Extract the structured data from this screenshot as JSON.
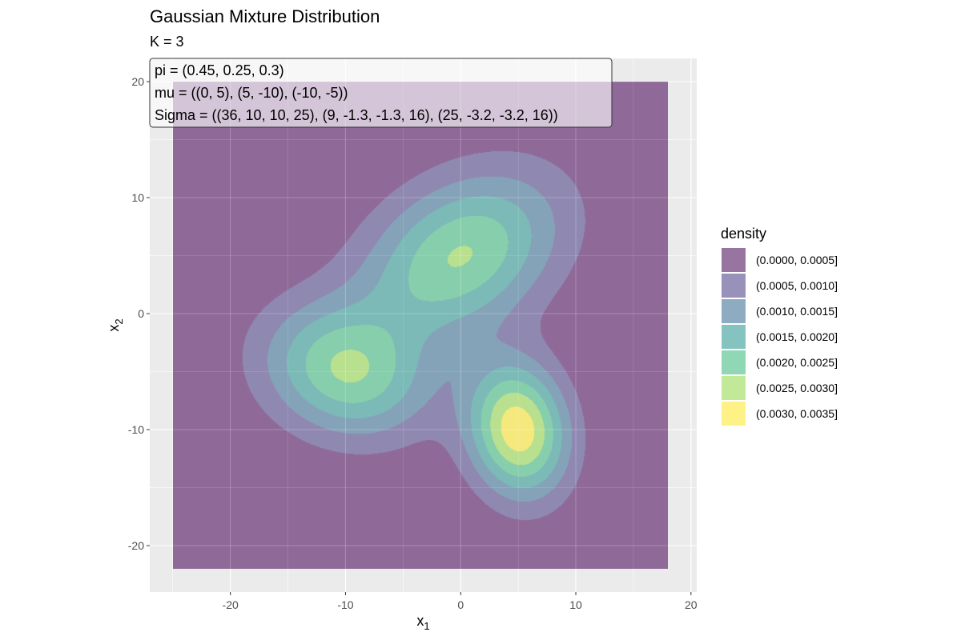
{
  "chart_data": {
    "type": "heatmap",
    "title": "Gaussian Mixture Distribution",
    "subtitle": "K = 3",
    "xlabel": "x",
    "xlabel_subscript": "1",
    "ylabel": "x",
    "ylabel_subscript": "2",
    "xlim": [
      -27,
      20.5
    ],
    "ylim": [
      -24,
      22
    ],
    "data_extent": {
      "x": [
        -25,
        18
      ],
      "y": [
        -22,
        20
      ]
    },
    "x_ticks": [
      -20,
      -10,
      0,
      10,
      20
    ],
    "x_tick_labels": [
      "-20",
      "-10",
      "0",
      "10",
      "20"
    ],
    "y_ticks": [
      -20,
      -10,
      0,
      10,
      20
    ],
    "y_tick_labels": [
      "-20",
      "-10",
      "0",
      "10",
      "20"
    ],
    "grid": true,
    "legend_position": "right",
    "mixture": {
      "K": 3,
      "pi": [
        0.45,
        0.25,
        0.3
      ],
      "mu": [
        [
          0,
          5
        ],
        [
          5,
          -10
        ],
        [
          -10,
          -5
        ]
      ],
      "Sigma": [
        [
          36,
          10,
          10,
          25
        ],
        [
          9,
          -1.3,
          -1.3,
          16
        ],
        [
          25,
          -3.2,
          -3.2,
          16
        ]
      ]
    },
    "annotation_lines": [
      "pi = (0.45, 0.25, 0.3)",
      "mu = ((0, 5), (5, -10), (-10, -5))",
      "Sigma = ((36, 10, 10, 25), (9, -1.3, -1.3, 16), (25, -3.2, -3.2, 16))"
    ],
    "legend": {
      "title": "density",
      "levels": [
        {
          "label": "(0.0000, 0.0005]",
          "min": 0.0,
          "max": 0.0005,
          "color": "#440154"
        },
        {
          "label": "(0.0005, 0.0010]",
          "min": 0.0005,
          "max": 0.001,
          "color": "#443983"
        },
        {
          "label": "(0.0010, 0.0015]",
          "min": 0.001,
          "max": 0.0015,
          "color": "#31688e"
        },
        {
          "label": "(0.0015, 0.0020]",
          "min": 0.0015,
          "max": 0.002,
          "color": "#21918c"
        },
        {
          "label": "(0.0020, 0.0025]",
          "min": 0.002,
          "max": 0.0025,
          "color": "#35b779"
        },
        {
          "label": "(0.0025, 0.0030]",
          "min": 0.0025,
          "max": 0.003,
          "color": "#90d743"
        },
        {
          "label": "(0.0030, 0.0035]",
          "min": 0.003,
          "max": 0.0035,
          "color": "#fde725"
        }
      ]
    },
    "fill_alpha": 0.55,
    "colors": {
      "panel_background": "#ebebeb",
      "grid_major": "#ffffff"
    }
  }
}
